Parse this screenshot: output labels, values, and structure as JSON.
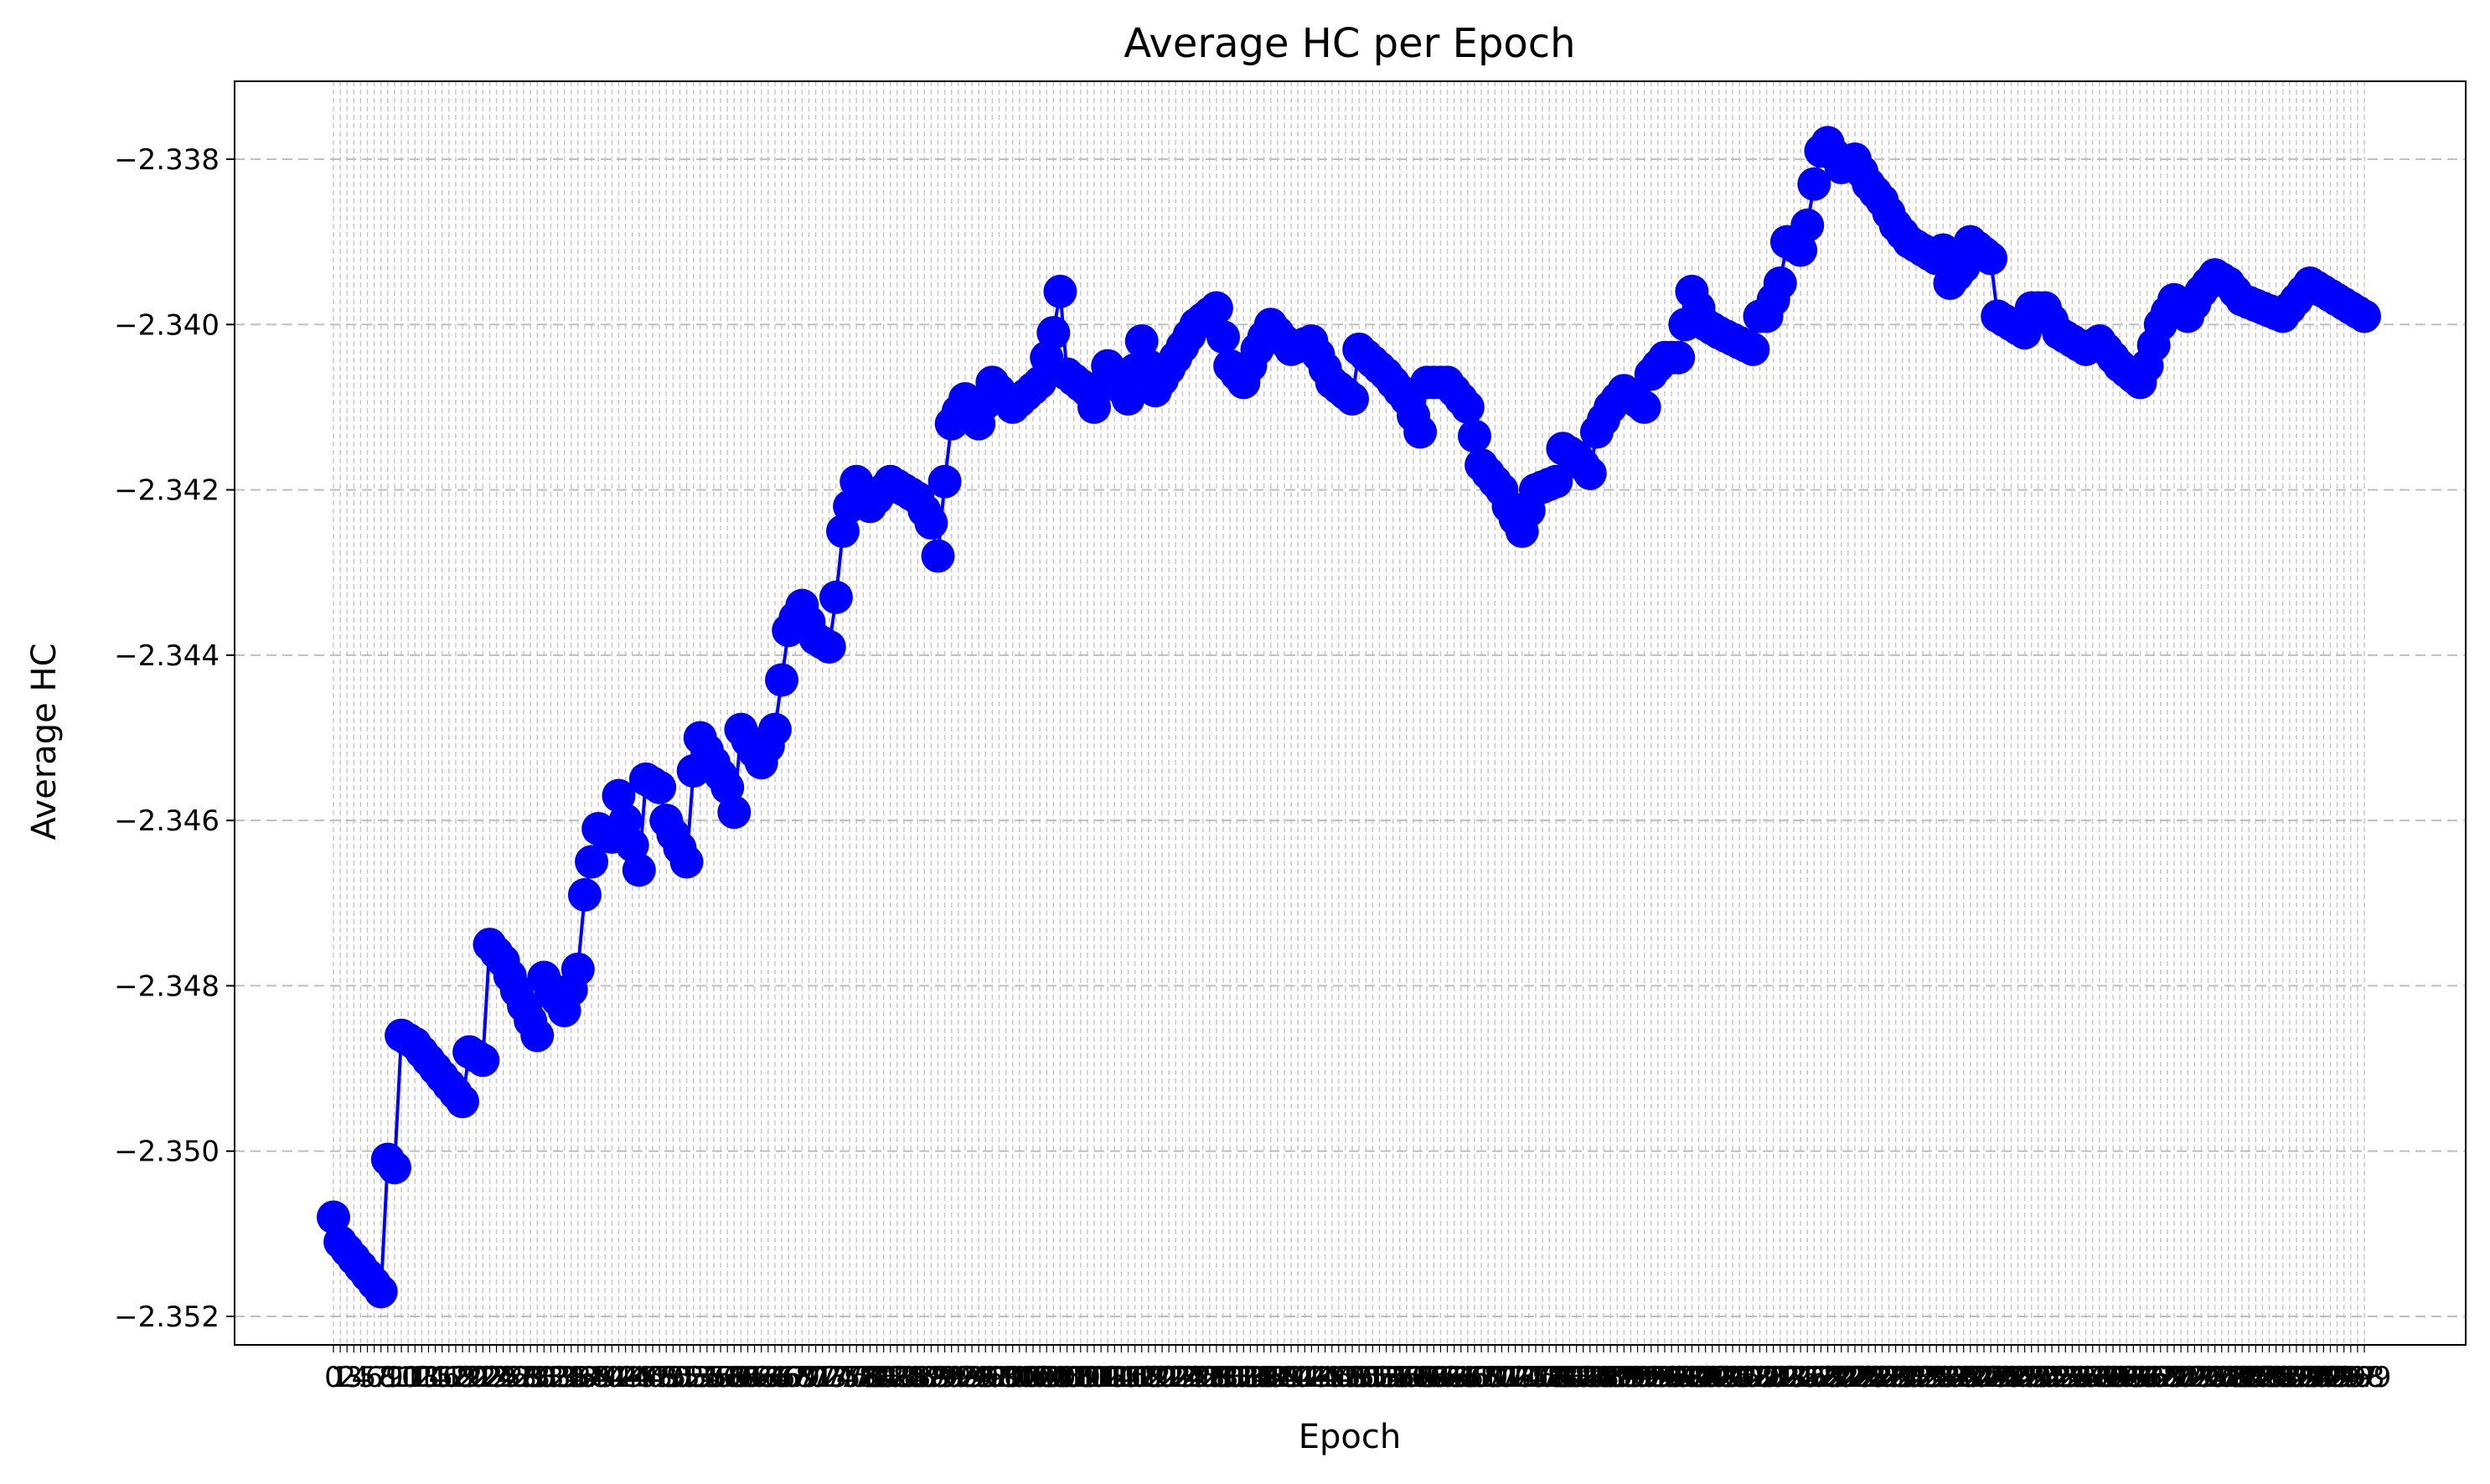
{
  "chart_data": {
    "type": "line",
    "title": "Average HC per Epoch",
    "xlabel": "Epoch",
    "ylabel": "Average HC",
    "xlim": [
      0,
      299
    ],
    "ylim": [
      -2.3524,
      -2.3371
    ],
    "yticks": [
      -2.352,
      -2.35,
      -2.348,
      -2.346,
      -2.344,
      -2.342,
      -2.34,
      -2.338
    ],
    "ytick_labels": [
      "−2.352",
      "−2.350",
      "−2.348",
      "−2.346",
      "−2.344",
      "−2.342",
      "−2.340",
      "−2.338"
    ],
    "grid": true,
    "line_color": "#0000ff",
    "marker": "circle",
    "keypoints": [
      [
        0,
        -2.3508
      ],
      [
        1,
        -2.3511
      ],
      [
        7,
        -2.3517
      ],
      [
        8,
        -2.3501
      ],
      [
        9,
        -2.3502
      ],
      [
        10,
        -2.3486
      ],
      [
        12,
        -2.3487
      ],
      [
        19,
        -2.3494
      ],
      [
        20,
        -2.3488
      ],
      [
        22,
        -2.3489
      ],
      [
        23,
        -2.3475
      ],
      [
        25,
        -2.3477
      ],
      [
        30,
        -2.3486
      ],
      [
        31,
        -2.3479
      ],
      [
        34,
        -2.3483
      ],
      [
        36,
        -2.3478
      ],
      [
        37,
        -2.3469
      ],
      [
        39,
        -2.3461
      ],
      [
        41,
        -2.3462
      ],
      [
        42,
        -2.3457
      ],
      [
        45,
        -2.3466
      ],
      [
        46,
        -2.3455
      ],
      [
        48,
        -2.3456
      ],
      [
        49,
        -2.346
      ],
      [
        52,
        -2.3465
      ],
      [
        53,
        -2.3454
      ],
      [
        54,
        -2.345
      ],
      [
        58,
        -2.3456
      ],
      [
        59,
        -2.3459
      ],
      [
        60,
        -2.3449
      ],
      [
        63,
        -2.3453
      ],
      [
        65,
        -2.3449
      ],
      [
        66,
        -2.3443
      ],
      [
        67,
        -2.3437
      ],
      [
        69,
        -2.3434
      ],
      [
        71,
        -2.3438
      ],
      [
        73,
        -2.3439
      ],
      [
        74,
        -2.3433
      ],
      [
        75,
        -2.3425
      ],
      [
        77,
        -2.3419
      ],
      [
        79,
        -2.3422
      ],
      [
        82,
        -2.3419
      ],
      [
        86,
        -2.3421
      ],
      [
        88,
        -2.3424
      ],
      [
        89,
        -2.3428
      ],
      [
        90,
        -2.3419
      ],
      [
        91,
        -2.3412
      ],
      [
        93,
        -2.3409
      ],
      [
        95,
        -2.3412
      ],
      [
        97,
        -2.3407
      ],
      [
        100,
        -2.341
      ],
      [
        104,
        -2.3407
      ],
      [
        106,
        -2.3401
      ],
      [
        107,
        -2.3396
      ],
      [
        108,
        -2.3406
      ],
      [
        111,
        -2.3408
      ],
      [
        112,
        -2.341
      ],
      [
        114,
        -2.3405
      ],
      [
        117,
        -2.3409
      ],
      [
        119,
        -2.3402
      ],
      [
        121,
        -2.3408
      ],
      [
        124,
        -2.3404
      ],
      [
        127,
        -2.34
      ],
      [
        130,
        -2.3398
      ],
      [
        132,
        -2.3405
      ],
      [
        134,
        -2.3407
      ],
      [
        136,
        -2.3403
      ],
      [
        138,
        -2.34
      ],
      [
        141,
        -2.3403
      ],
      [
        144,
        -2.3402
      ],
      [
        147,
        -2.3407
      ],
      [
        150,
        -2.3409
      ],
      [
        151,
        -2.3403
      ],
      [
        155,
        -2.3406
      ],
      [
        158,
        -2.3409
      ],
      [
        160,
        -2.3413
      ],
      [
        161,
        -2.3407
      ],
      [
        164,
        -2.3407
      ],
      [
        167,
        -2.341
      ],
      [
        169,
        -2.3417
      ],
      [
        172,
        -2.342
      ],
      [
        173,
        -2.3422
      ],
      [
        175,
        -2.3425
      ],
      [
        177,
        -2.342
      ],
      [
        180,
        -2.3419
      ],
      [
        181,
        -2.3415
      ],
      [
        183,
        -2.3416
      ],
      [
        185,
        -2.3418
      ],
      [
        186,
        -2.3413
      ],
      [
        188,
        -2.341
      ],
      [
        190,
        -2.3408
      ],
      [
        193,
        -2.341
      ],
      [
        194,
        -2.3406
      ],
      [
        196,
        -2.3404
      ],
      [
        198,
        -2.3404
      ],
      [
        199,
        -2.34
      ],
      [
        200,
        -2.3396
      ],
      [
        202,
        -2.34
      ],
      [
        204,
        -2.3401
      ],
      [
        209,
        -2.3403
      ],
      [
        210,
        -2.3399
      ],
      [
        211,
        -2.3399
      ],
      [
        213,
        -2.3395
      ],
      [
        214,
        -2.339
      ],
      [
        216,
        -2.3391
      ],
      [
        217,
        -2.3388
      ],
      [
        218,
        -2.3383
      ],
      [
        219,
        -2.3379
      ],
      [
        220,
        -2.3378
      ],
      [
        222,
        -2.3381
      ],
      [
        224,
        -2.338
      ],
      [
        226,
        -2.3383
      ],
      [
        228,
        -2.3385
      ],
      [
        230,
        -2.3388
      ],
      [
        232,
        -2.339
      ],
      [
        236,
        -2.3392
      ],
      [
        237,
        -2.3391
      ],
      [
        238,
        -2.3395
      ],
      [
        240,
        -2.3393
      ],
      [
        241,
        -2.339
      ],
      [
        244,
        -2.3392
      ],
      [
        245,
        -2.3399
      ],
      [
        247,
        -2.34
      ],
      [
        249,
        -2.3401
      ],
      [
        250,
        -2.3398
      ],
      [
        252,
        -2.3398
      ],
      [
        254,
        -2.3401
      ],
      [
        256,
        -2.3402
      ],
      [
        258,
        -2.3403
      ],
      [
        260,
        -2.3402
      ],
      [
        263,
        -2.3405
      ],
      [
        266,
        -2.3407
      ],
      [
        267,
        -2.3405
      ],
      [
        269,
        -2.34
      ],
      [
        271,
        -2.3397
      ],
      [
        273,
        -2.3399
      ],
      [
        275,
        -2.3396
      ],
      [
        277,
        -2.3394
      ],
      [
        279,
        -2.3395
      ],
      [
        281,
        -2.3397
      ],
      [
        284,
        -2.3398
      ],
      [
        287,
        -2.3399
      ],
      [
        289,
        -2.3397
      ],
      [
        291,
        -2.3395
      ],
      [
        299,
        -2.3399
      ]
    ]
  }
}
